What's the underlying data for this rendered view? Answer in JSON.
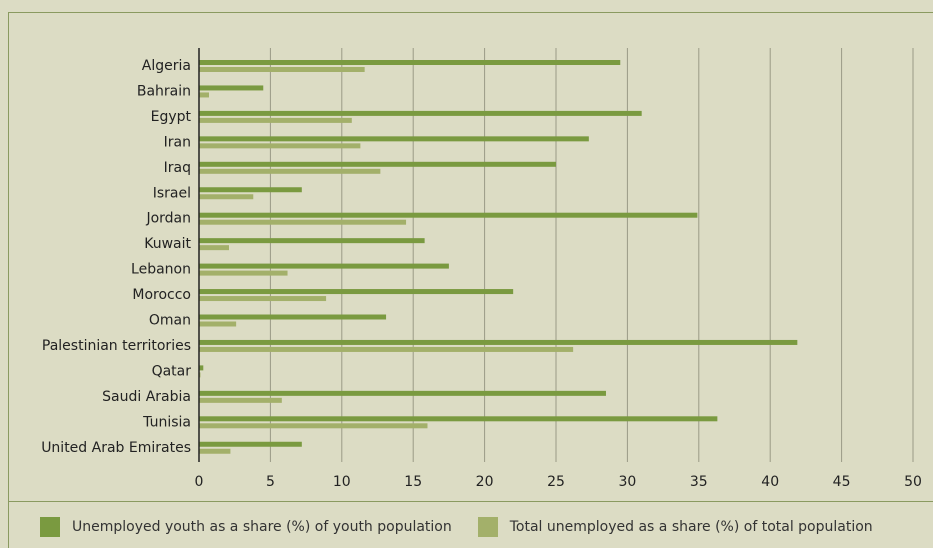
{
  "chart_data": {
    "type": "bar",
    "orientation": "horizontal",
    "categories": [
      "Algeria",
      "Bahrain",
      "Egypt",
      "Iran",
      "Iraq",
      "Israel",
      "Jordan",
      "Kuwait",
      "Lebanon",
      "Morocco",
      "Oman",
      "Palestinian territories",
      "Qatar",
      "Saudi Arabia",
      "Tunisia",
      "United Arab Emirates"
    ],
    "series": [
      {
        "name": "Unemployed youth as a share (%) of youth population",
        "color": "#7a9a40",
        "values": [
          29.5,
          4.5,
          31.0,
          27.3,
          25.0,
          7.2,
          34.9,
          15.8,
          17.5,
          22.0,
          13.1,
          41.9,
          0.3,
          28.5,
          36.3,
          7.2
        ]
      },
      {
        "name": "Total unemployed as a share (%) of total population",
        "color": "#a3b06a",
        "values": [
          11.6,
          0.7,
          10.7,
          11.3,
          12.7,
          3.8,
          14.5,
          2.1,
          6.2,
          8.9,
          2.6,
          26.2,
          0.1,
          5.8,
          16.0,
          2.2
        ]
      }
    ],
    "xticks": [
      "0",
      "5",
      "10",
      "15",
      "20",
      "25",
      "30",
      "35",
      "40",
      "45",
      "50"
    ],
    "xlim": [
      0,
      50
    ],
    "grid": true,
    "legend_position": "bottom"
  }
}
